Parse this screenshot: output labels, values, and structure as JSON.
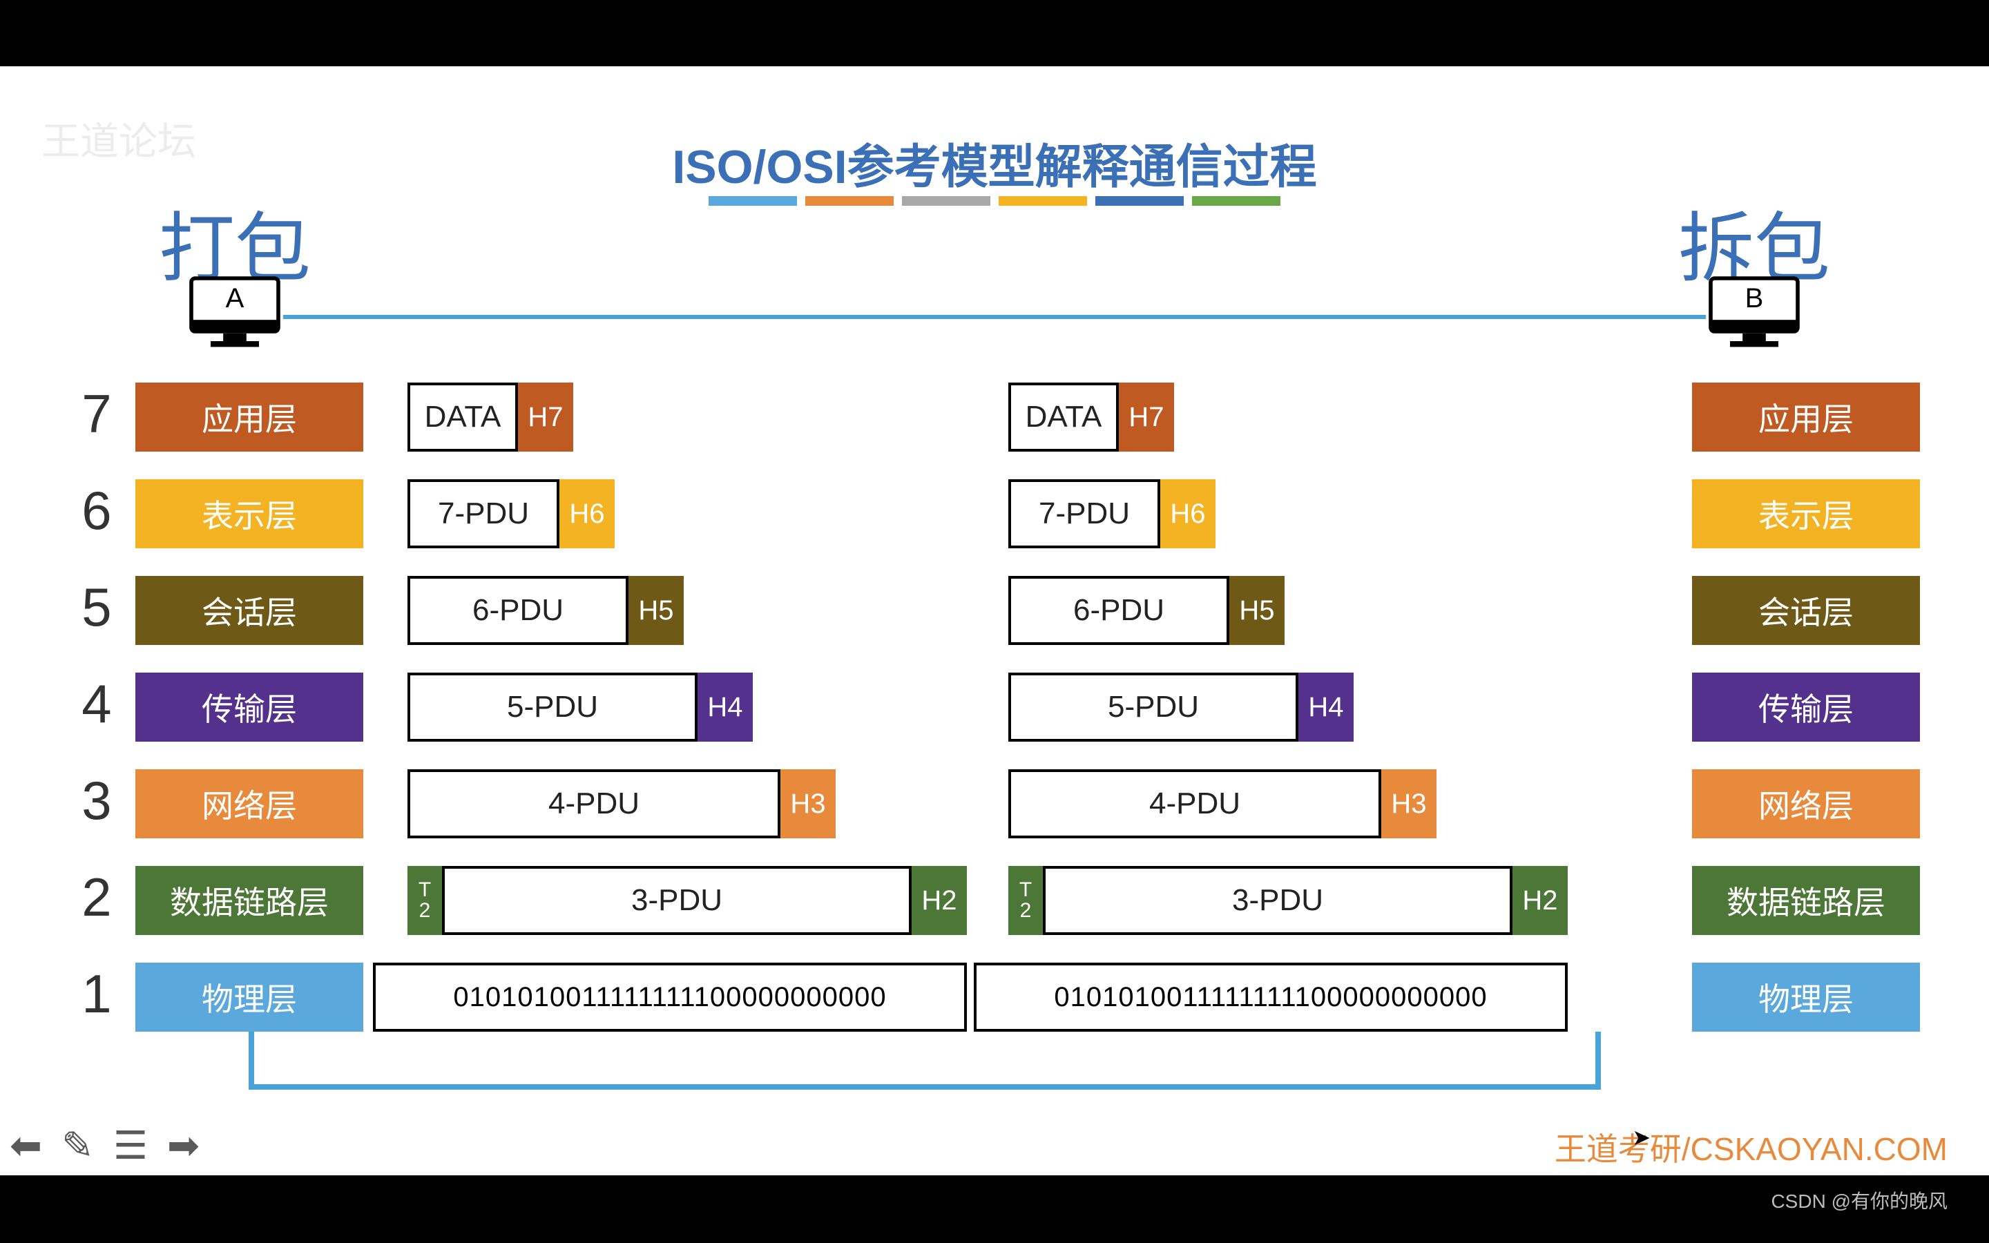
{
  "title": "ISO/OSI参考模型解释通信过程",
  "title_underline_colors": [
    "#5aa8dc",
    "#e88a3c",
    "#a9a9a9",
    "#f3b323",
    "#3b6fb6",
    "#6aa749"
  ],
  "pack_label": "打包",
  "unpack_label": "拆包",
  "monitor_a": "A",
  "monitor_b": "B",
  "watermark_tl": "王道论坛",
  "watermark_br": "王道考研/CSKAOYAN.COM",
  "csdn_credit": "CSDN @有你的晚风",
  "layers": [
    {
      "num": "7",
      "name": "应用层",
      "color": "#bf5a23"
    },
    {
      "num": "6",
      "name": "表示层",
      "color": "#f3b323"
    },
    {
      "num": "5",
      "name": "会话层",
      "color": "#6e5a16"
    },
    {
      "num": "4",
      "name": "传输层",
      "color": "#54318c"
    },
    {
      "num": "3",
      "name": "网络层",
      "color": "#e88a3c"
    },
    {
      "num": "2",
      "name": "数据链路层",
      "color": "#4c7737"
    },
    {
      "num": "1",
      "name": "物理层",
      "color": "#5aa8dc"
    }
  ],
  "pdu_left": [
    {
      "body": "DATA",
      "head": "H7",
      "head_color": "#bf5a23",
      "body_w": 160,
      "head_w": 80
    },
    {
      "body": "7-PDU",
      "head": "H6",
      "head_color": "#f3b323",
      "body_w": 220,
      "head_w": 80
    },
    {
      "body": "6-PDU",
      "head": "H5",
      "head_color": "#6e5a16",
      "body_w": 320,
      "head_w": 80
    },
    {
      "body": "5-PDU",
      "head": "H4",
      "head_color": "#54318c",
      "body_w": 420,
      "head_w": 80
    },
    {
      "body": "4-PDU",
      "head": "H3",
      "head_color": "#e88a3c",
      "body_w": 540,
      "head_w": 80
    },
    {
      "body": "3-PDU",
      "head": "H2",
      "head_color": "#4c7737",
      "tail": "T\n2",
      "tail_color": "#4c7737",
      "body_w": 680,
      "head_w": 80,
      "tail_w": 50
    }
  ],
  "pdu_right": [
    {
      "body": "DATA",
      "head": "H7",
      "head_color": "#bf5a23",
      "body_w": 160,
      "head_w": 80
    },
    {
      "body": "7-PDU",
      "head": "H6",
      "head_color": "#f3b323",
      "body_w": 220,
      "head_w": 80
    },
    {
      "body": "6-PDU",
      "head": "H5",
      "head_color": "#6e5a16",
      "body_w": 320,
      "head_w": 80
    },
    {
      "body": "5-PDU",
      "head": "H4",
      "head_color": "#54318c",
      "body_w": 420,
      "head_w": 80
    },
    {
      "body": "4-PDU",
      "head": "H3",
      "head_color": "#e88a3c",
      "body_w": 540,
      "head_w": 80
    },
    {
      "body": "3-PDU",
      "head": "H2",
      "head_color": "#4c7737",
      "tail": "T\n2",
      "tail_color": "#4c7737",
      "body_w": 680,
      "head_w": 80,
      "tail_w": 50
    }
  ],
  "bits_left": "0101010011111111100000000000",
  "bits_right": "0101010011111111100000000000",
  "left_col_start": 590,
  "right_col_start": 1460,
  "bits_width": 860,
  "connection_color": "#4aa3d6"
}
